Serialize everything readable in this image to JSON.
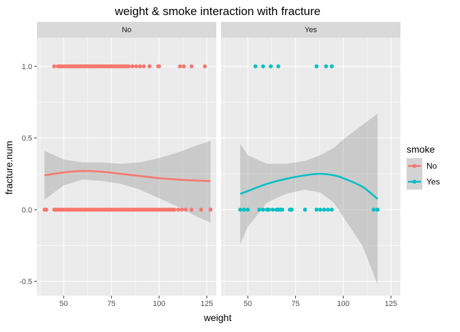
{
  "chart_data": {
    "type": "scatter",
    "title": "weight & smoke  interaction with fracture",
    "xlabel": "weight",
    "ylabel": "fracture.num",
    "xlim": [
      36,
      130
    ],
    "ylim": [
      -0.6,
      1.2
    ],
    "xticks": [
      50,
      75,
      100,
      125
    ],
    "yticks": [
      -0.5,
      0.0,
      0.5,
      1.0
    ],
    "ytick_labels": [
      "-0.5",
      "0.0",
      "0.5",
      "1.0"
    ],
    "legend": {
      "title": "smoke",
      "placement": "right",
      "entries": [
        {
          "label": "No",
          "color": "#F8766D"
        },
        {
          "label": "Yes",
          "color": "#00BFC4"
        }
      ]
    },
    "facets": [
      {
        "label": "No",
        "color": "#F8766D",
        "points_y1": [
          45,
          47,
          48,
          49,
          50,
          51,
          52,
          53,
          54,
          55,
          56,
          57,
          58,
          59,
          60,
          61,
          62,
          63,
          64,
          65,
          66,
          67,
          68,
          69,
          70,
          71,
          72,
          73,
          74,
          75,
          76,
          77,
          78,
          79,
          80,
          81,
          82,
          83,
          84,
          86,
          88,
          90,
          92,
          95,
          99.5,
          100,
          111,
          113,
          117,
          124
        ],
        "points_y0": [
          40,
          41,
          45,
          46,
          47,
          48,
          49,
          50,
          51,
          52,
          53,
          54,
          55,
          56,
          57,
          58,
          59,
          60,
          61,
          62,
          63,
          64,
          65,
          66,
          67,
          68,
          69,
          70,
          71,
          72,
          73,
          74,
          75,
          76,
          77,
          78,
          79,
          80,
          81,
          82,
          83,
          84,
          85,
          86,
          87,
          88,
          89,
          90,
          91,
          92,
          93,
          94,
          95,
          96,
          97,
          98,
          99,
          100,
          101,
          102,
          103,
          104,
          105,
          106,
          107,
          108,
          110,
          112,
          114,
          117,
          122,
          127
        ],
        "smooth": {
          "x": [
            40,
            50,
            60,
            70,
            80,
            90,
            100,
            110,
            120,
            127
          ],
          "y": [
            0.24,
            0.26,
            0.27,
            0.265,
            0.25,
            0.235,
            0.22,
            0.21,
            0.203,
            0.2
          ],
          "lower": [
            0.07,
            0.17,
            0.21,
            0.2,
            0.18,
            0.14,
            0.08,
            0.02,
            -0.05,
            -0.09
          ],
          "upper": [
            0.41,
            0.35,
            0.33,
            0.33,
            0.32,
            0.33,
            0.36,
            0.4,
            0.45,
            0.48
          ]
        }
      },
      {
        "label": "Yes",
        "color": "#00BFC4",
        "points_y1": [
          54,
          58,
          62,
          66,
          86,
          91,
          94
        ],
        "points_y0": [
          46,
          48,
          50,
          56,
          58,
          60,
          61,
          63,
          65,
          66,
          67,
          68,
          72,
          73,
          80,
          86,
          88,
          90,
          92,
          94,
          116,
          118
        ],
        "smooth": {
          "x": [
            46,
            50,
            60,
            70,
            80,
            88,
            95,
            100,
            110,
            118
          ],
          "y": [
            0.11,
            0.13,
            0.18,
            0.215,
            0.24,
            0.25,
            0.24,
            0.22,
            0.16,
            0.075
          ],
          "lower": [
            -0.24,
            -0.12,
            0.05,
            0.11,
            0.14,
            0.12,
            0.05,
            -0.05,
            -0.25,
            -0.52
          ],
          "upper": [
            0.46,
            0.38,
            0.32,
            0.32,
            0.34,
            0.38,
            0.43,
            0.49,
            0.59,
            0.67
          ]
        }
      }
    ]
  }
}
